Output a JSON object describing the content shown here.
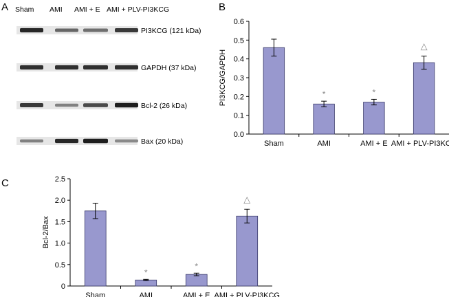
{
  "panel_labels": {
    "a": "A",
    "b": "B",
    "c": "C"
  },
  "blot": {
    "lane_labels": [
      "Sham",
      "AMI",
      "AMI + E",
      "AMI + PLV-PI3KCG"
    ],
    "bands": [
      {
        "label": "PI3KCG (121 kDa)",
        "intensities": [
          0.95,
          0.6,
          0.55,
          0.85
        ]
      },
      {
        "label": "GAPDH (37 kDa)",
        "intensities": [
          0.9,
          0.9,
          0.9,
          0.9
        ]
      },
      {
        "label": "Bcl-2 (26 kDa)",
        "intensities": [
          0.85,
          0.45,
          0.75,
          1.0
        ]
      },
      {
        "label": "Bax (20 kDa)",
        "intensities": [
          0.45,
          0.95,
          1.0,
          0.4
        ]
      }
    ]
  },
  "colors": {
    "bar_fill": "#9898ce",
    "bar_stroke": "#3a3a6a",
    "axis": "#000000",
    "marker": "#888888"
  },
  "chart_data": [
    {
      "id": "B",
      "type": "bar",
      "categories": [
        "Sham",
        "AMI",
        "AMI + E",
        "AMI + PLV-PI3KCG"
      ],
      "values": [
        0.46,
        0.16,
        0.17,
        0.38
      ],
      "errors": [
        0.045,
        0.015,
        0.015,
        0.035
      ],
      "markers": [
        "",
        "*",
        "*",
        "△"
      ],
      "title": "",
      "xlabel": "",
      "ylabel": "PI3KCG/GAPDH",
      "ylim": [
        0,
        0.6
      ],
      "yticks": [
        0,
        0.1,
        0.2,
        0.3,
        0.4,
        0.5,
        0.6
      ],
      "ytick_labels": [
        "0.0",
        "0.1",
        "0.2",
        "0.3",
        "0.4",
        "0.5",
        "0.6"
      ],
      "grid": false
    },
    {
      "id": "C",
      "type": "bar",
      "categories": [
        "Sham",
        "AMI",
        "AMI + E",
        "AMI + PLV-PI3KCG"
      ],
      "values": [
        1.75,
        0.14,
        0.27,
        1.63
      ],
      "errors": [
        0.18,
        0.015,
        0.03,
        0.16
      ],
      "markers": [
        "",
        "*",
        "*",
        "△"
      ],
      "title": "",
      "xlabel": "",
      "ylabel": "Bcl-2/Bax",
      "ylim": [
        0,
        2.5
      ],
      "yticks": [
        0,
        0.5,
        1.0,
        1.5,
        2.0,
        2.5
      ],
      "ytick_labels": [
        "0",
        "0.5",
        "1.0",
        "1.5",
        "2.0",
        "2.5"
      ],
      "grid": false
    }
  ]
}
